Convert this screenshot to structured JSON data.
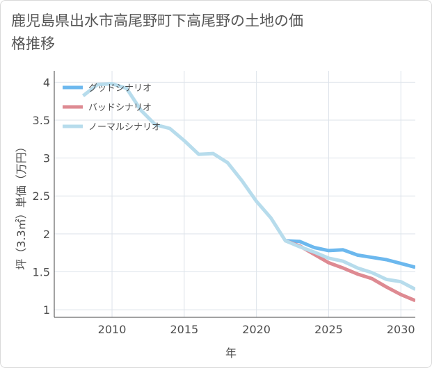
{
  "title": "鹿児島県出水市高尾野町下高尾野の土地の価格推移",
  "chart_data": {
    "type": "line",
    "title": "鹿児島県出水市高尾野町下高尾野の土地の価格推移",
    "xlabel": "年",
    "ylabel": "坪（3.3㎡）単価（万円）",
    "xlim": [
      2006,
      2031
    ],
    "ylim": [
      0.9,
      4.15
    ],
    "xticks": [
      2010,
      2015,
      2020,
      2025,
      2030
    ],
    "yticks": [
      1,
      1.5,
      2,
      2.5,
      3,
      3.5,
      4
    ],
    "ytick_labels": [
      "1",
      "1.5",
      "2",
      "2.5",
      "3",
      "3.5",
      "4"
    ],
    "grid": true,
    "legend_position": "top-left",
    "series": [
      {
        "name": "グッドシナリオ",
        "color": "#6cb8ee",
        "x": [
          2022,
          2023,
          2024,
          2025,
          2026,
          2027,
          2028,
          2029,
          2030,
          2031
        ],
        "y": [
          1.91,
          1.9,
          1.82,
          1.78,
          1.79,
          1.72,
          1.69,
          1.66,
          1.61,
          1.56
        ]
      },
      {
        "name": "バッドシナリオ",
        "color": "#de8a92",
        "x": [
          2022,
          2023,
          2024,
          2025,
          2026,
          2027,
          2028,
          2029,
          2030,
          2031
        ],
        "y": [
          1.91,
          1.84,
          1.73,
          1.62,
          1.55,
          1.47,
          1.41,
          1.3,
          1.2,
          1.12
        ]
      },
      {
        "name": "ノーマルシナリオ",
        "color": "#b7dcec",
        "x": [
          2008,
          2009,
          2010,
          2011,
          2012,
          2013,
          2014,
          2015,
          2016,
          2017,
          2018,
          2019,
          2020,
          2021,
          2022,
          2023,
          2024,
          2025,
          2026,
          2027,
          2028,
          2029,
          2030,
          2031
        ],
        "y": [
          3.82,
          3.97,
          3.98,
          3.92,
          3.63,
          3.44,
          3.39,
          3.23,
          3.05,
          3.06,
          2.94,
          2.7,
          2.43,
          2.21,
          1.91,
          1.83,
          1.76,
          1.68,
          1.64,
          1.55,
          1.49,
          1.4,
          1.37,
          1.27
        ]
      }
    ]
  }
}
